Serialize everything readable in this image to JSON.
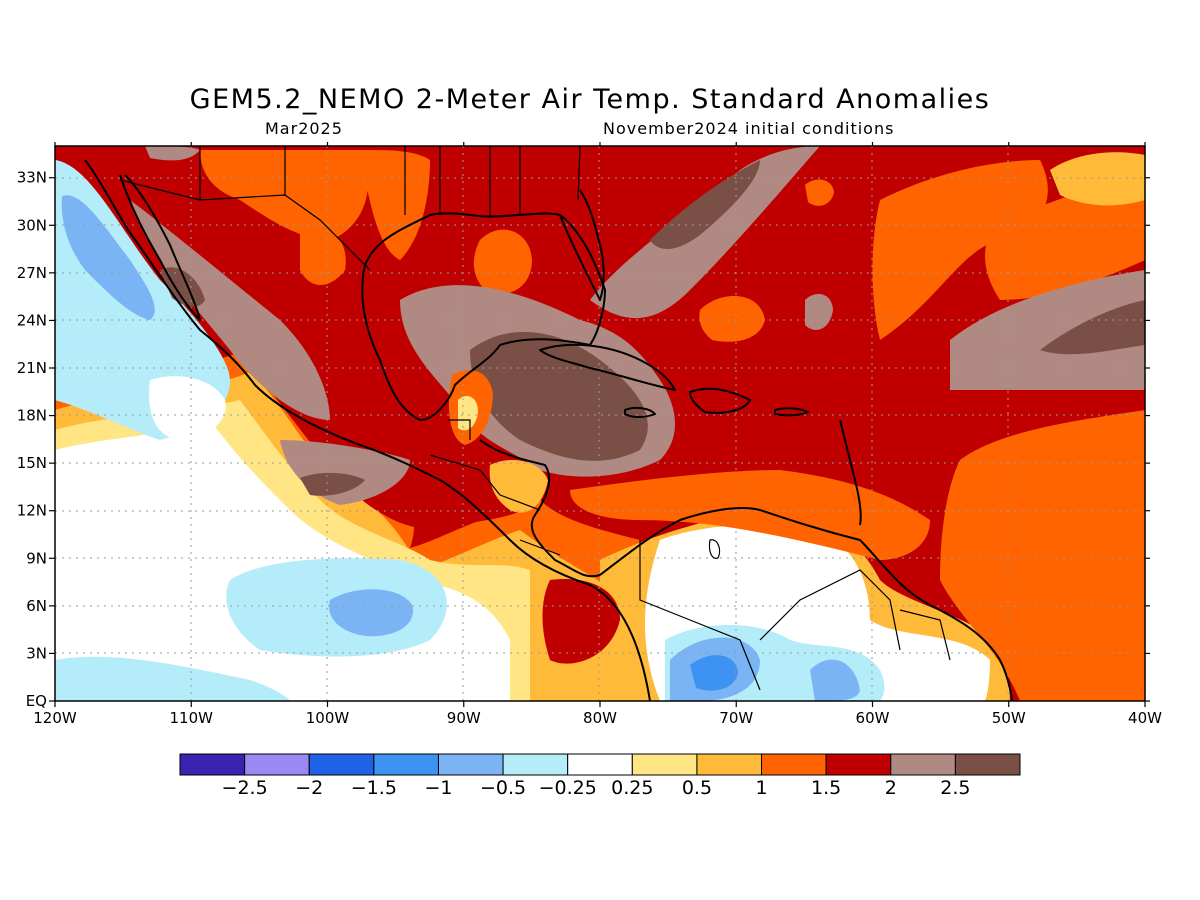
{
  "header": {
    "title": "GEM5.2_NEMO 2-Meter Air Temp. Standard Anomalies",
    "subtitle_left": "Mar2025",
    "subtitle_right": "November2024 initial conditions"
  },
  "map": {
    "lon_range": [
      -120,
      -40
    ],
    "lat_range": [
      0,
      35
    ],
    "lon_ticks": [
      {
        "value": -120,
        "label": "120W"
      },
      {
        "value": -110,
        "label": "110W"
      },
      {
        "value": -100,
        "label": "100W"
      },
      {
        "value": -90,
        "label": "90W"
      },
      {
        "value": -80,
        "label": "80W"
      },
      {
        "value": -70,
        "label": "70W"
      },
      {
        "value": -60,
        "label": "60W"
      },
      {
        "value": -50,
        "label": "50W"
      },
      {
        "value": -40,
        "label": "40W"
      }
    ],
    "lat_ticks": [
      {
        "value": 0,
        "label": "EQ"
      },
      {
        "value": 3,
        "label": "3N"
      },
      {
        "value": 6,
        "label": "6N"
      },
      {
        "value": 9,
        "label": "9N"
      },
      {
        "value": 12,
        "label": "12N"
      },
      {
        "value": 15,
        "label": "15N"
      },
      {
        "value": 18,
        "label": "18N"
      },
      {
        "value": 21,
        "label": "21N"
      },
      {
        "value": 24,
        "label": "24N"
      },
      {
        "value": 27,
        "label": "27N"
      },
      {
        "value": 30,
        "label": "30N"
      },
      {
        "value": 33,
        "label": "33N"
      }
    ],
    "colors": {
      "lt_-2.5": "#3b22b0",
      "-2.5_-2": "#9a89f2",
      "-2_-1.5": "#1f62e6",
      "-1.5_-1": "#3d92f2",
      "-1_-0.5": "#7ab4f4",
      "-0.5_-0.25": "#b5ecfa",
      "-0.25_0.25": "#ffffff",
      "0.25_0.5": "#ffe584",
      "0.5_1": "#ffba3a",
      "1_1.5": "#ff6400",
      "1.5_2": "#c00000",
      "2_2.5": "#b08a82",
      "gt_2.5": "#7a5046"
    }
  },
  "colorbar": {
    "colors": [
      "#3b22b0",
      "#9a89f2",
      "#1f62e6",
      "#3d92f2",
      "#7ab4f4",
      "#b5ecfa",
      "#ffffff",
      "#ffe584",
      "#ffba3a",
      "#ff6400",
      "#c00000",
      "#b08a82",
      "#7a5046"
    ],
    "labels": [
      "−2.5",
      "−2",
      "−1.5",
      "−1",
      "−0.5",
      "−0.25",
      "0.25",
      "0.5",
      "1",
      "1.5",
      "2",
      "2.5"
    ]
  }
}
